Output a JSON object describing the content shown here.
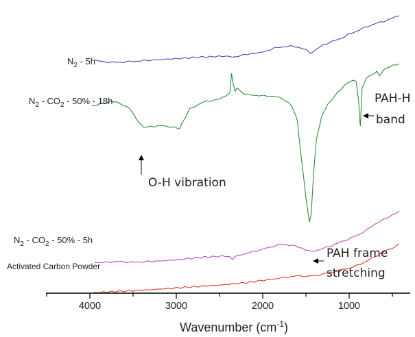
{
  "chart_data": {
    "type": "line",
    "title": "",
    "xlabel": "Wavenumber (cm",
    "xlabel_sup": "-1",
    "xlabel_close": ")",
    "ylabel": "",
    "xlim": [
      4500,
      400
    ],
    "x_reversed": true,
    "xticks": [
      4000,
      3000,
      2000,
      1000
    ],
    "xtick_labels": [
      "4000",
      "3000",
      "2000",
      "1000"
    ],
    "grid": false,
    "legend": "none",
    "series": [
      {
        "name": "N2 - 5h",
        "label_parts": [
          "N",
          "2",
          " - 5h"
        ],
        "color": "#3a4ea8",
        "points": [
          [
            3950,
            0.18
          ],
          [
            3850,
            0.155
          ],
          [
            3750,
            0.145
          ],
          [
            3650,
            0.147
          ],
          [
            3500,
            0.16
          ],
          [
            3300,
            0.18
          ],
          [
            3000,
            0.205
          ],
          [
            2700,
            0.23
          ],
          [
            2450,
            0.245
          ],
          [
            2380,
            0.24
          ],
          [
            2350,
            0.215
          ],
          [
            2330,
            0.235
          ],
          [
            2250,
            0.26
          ],
          [
            2000,
            0.31
          ],
          [
            1850,
            0.38
          ],
          [
            1750,
            0.4
          ],
          [
            1650,
            0.405
          ],
          [
            1600,
            0.395
          ],
          [
            1500,
            0.345
          ],
          [
            1450,
            0.3
          ],
          [
            1400,
            0.33
          ],
          [
            1300,
            0.43
          ],
          [
            1100,
            0.53
          ],
          [
            1000,
            0.6
          ],
          [
            900,
            0.66
          ],
          [
            800,
            0.72
          ],
          [
            700,
            0.77
          ],
          [
            600,
            0.81
          ],
          [
            500,
            0.86
          ],
          [
            420,
            0.9
          ]
        ]
      },
      {
        "name": "N2 - CO2 - 50% - 18h",
        "label_parts": [
          "N",
          "2",
          " - CO",
          "2",
          " - 50% - 18h"
        ],
        "color": "#2e8b3a",
        "points": [
          [
            3980,
            0.225
          ],
          [
            3850,
            0.26
          ],
          [
            3750,
            0.3
          ],
          [
            3650,
            0.26
          ],
          [
            3550,
            0.2
          ],
          [
            3480,
            0.07
          ],
          [
            3430,
            -0.03
          ],
          [
            3380,
            -0.11
          ],
          [
            3300,
            -0.09
          ],
          [
            3150,
            -0.08
          ],
          [
            3050,
            -0.1
          ],
          [
            2960,
            -0.12
          ],
          [
            2850,
            0.17
          ],
          [
            2700,
            0.28
          ],
          [
            2500,
            0.33
          ],
          [
            2380,
            0.42
          ],
          [
            2360,
            0.72
          ],
          [
            2345,
            0.58
          ],
          [
            2320,
            0.45
          ],
          [
            2300,
            0.5
          ],
          [
            2200,
            0.4
          ],
          [
            2000,
            0.38
          ],
          [
            1850,
            0.37
          ],
          [
            1750,
            0.32
          ],
          [
            1660,
            0.22
          ],
          [
            1600,
            0.0
          ],
          [
            1550,
            -0.6
          ],
          [
            1500,
            -1.2
          ],
          [
            1460,
            -1.55
          ],
          [
            1440,
            -1.45
          ],
          [
            1410,
            -0.8
          ],
          [
            1380,
            -0.3
          ],
          [
            1320,
            0.05
          ],
          [
            1250,
            0.25
          ],
          [
            1150,
            0.4
          ],
          [
            1050,
            0.55
          ],
          [
            960,
            0.62
          ],
          [
            920,
            0.6
          ],
          [
            890,
            0.3
          ],
          [
            880,
            0.05
          ],
          [
            870,
            -0.08
          ],
          [
            860,
            0.2
          ],
          [
            850,
            0.5
          ],
          [
            800,
            0.65
          ],
          [
            720,
            0.72
          ],
          [
            680,
            0.75
          ],
          [
            650,
            0.68
          ],
          [
            600,
            0.78
          ],
          [
            550,
            0.82
          ],
          [
            480,
            0.85
          ],
          [
            420,
            0.87
          ]
        ]
      },
      {
        "name": "N2 - CO2 - 50% - 5h",
        "label_parts": [
          "N",
          "2",
          " - CO",
          "2",
          " - 50% - 5h"
        ],
        "color": "#b84bb8",
        "points": [
          [
            3950,
            -0.12
          ],
          [
            3850,
            -0.125
          ],
          [
            3700,
            -0.11
          ],
          [
            3500,
            -0.12
          ],
          [
            3300,
            -0.11
          ],
          [
            3000,
            -0.08
          ],
          [
            2700,
            -0.04
          ],
          [
            2450,
            -0.02
          ],
          [
            2380,
            -0.03
          ],
          [
            2350,
            -0.07
          ],
          [
            2320,
            -0.03
          ],
          [
            2200,
            0.02
          ],
          [
            2000,
            0.09
          ],
          [
            1850,
            0.15
          ],
          [
            1750,
            0.17
          ],
          [
            1650,
            0.15
          ],
          [
            1550,
            0.11
          ],
          [
            1450,
            0.05
          ],
          [
            1350,
            0.08
          ],
          [
            1200,
            0.15
          ],
          [
            1000,
            0.26
          ],
          [
            900,
            0.32
          ],
          [
            800,
            0.4
          ],
          [
            700,
            0.5
          ],
          [
            600,
            0.57
          ],
          [
            500,
            0.65
          ],
          [
            420,
            0.7
          ]
        ]
      },
      {
        "name": "Activated Carbon Powder",
        "label_parts": [
          "Activated Carbon Powder"
        ],
        "color": "#d8352c",
        "points": [
          [
            3950,
            -0.32
          ],
          [
            3700,
            -0.3
          ],
          [
            3400,
            -0.28
          ],
          [
            3100,
            -0.25
          ],
          [
            2800,
            -0.22
          ],
          [
            2500,
            -0.19
          ],
          [
            2200,
            -0.15
          ],
          [
            1900,
            -0.09
          ],
          [
            1700,
            -0.05
          ],
          [
            1600,
            -0.03
          ],
          [
            1500,
            -0.04
          ],
          [
            1400,
            -0.03
          ],
          [
            1300,
            0.0
          ],
          [
            1200,
            0.03
          ],
          [
            1100,
            0.07
          ],
          [
            1000,
            0.1
          ],
          [
            900,
            0.15
          ],
          [
            800,
            0.22
          ],
          [
            700,
            0.3
          ],
          [
            600,
            0.38
          ],
          [
            500,
            0.45
          ],
          [
            420,
            0.51
          ]
        ]
      }
    ],
    "annotations": [
      {
        "text": "O-H vibration",
        "x": 3400
      },
      {
        "text": "PAH-H",
        "x": 880
      },
      {
        "text": "band",
        "x": 880
      },
      {
        "text": "PAH frame",
        "x": 1450
      },
      {
        "text": "stretching",
        "x": 1450
      }
    ]
  }
}
